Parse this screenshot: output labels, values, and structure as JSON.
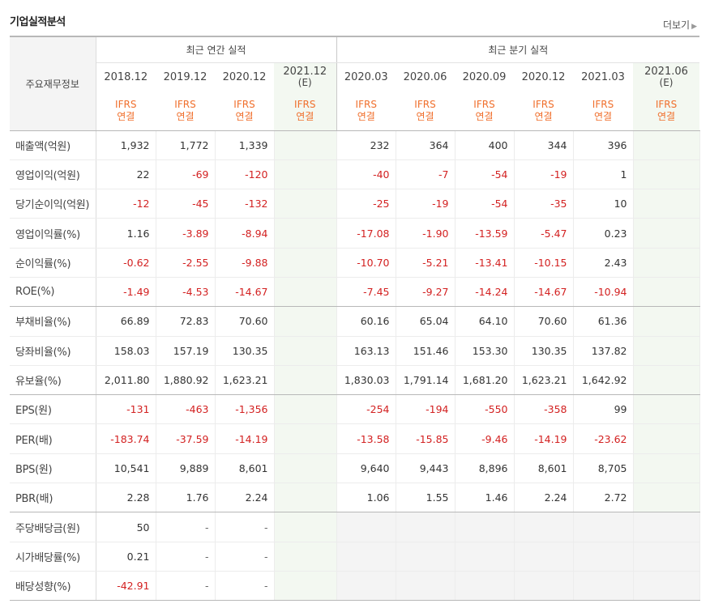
{
  "title": "기업실적분석",
  "more_label": "더보기",
  "header": {
    "row_label": "주요재무정보",
    "annual_group": "최근 연간 실적",
    "quarter_group": "최근 분기 실적"
  },
  "annual_periods": [
    {
      "year": "2018.12",
      "sub": "",
      "ifrs1": "IFRS",
      "ifrs2": "연결",
      "estimate": false
    },
    {
      "year": "2019.12",
      "sub": "",
      "ifrs1": "IFRS",
      "ifrs2": "연결",
      "estimate": false
    },
    {
      "year": "2020.12",
      "sub": "",
      "ifrs1": "IFRS",
      "ifrs2": "연결",
      "estimate": false
    },
    {
      "year": "2021.12",
      "sub": "(E)",
      "ifrs1": "IFRS",
      "ifrs2": "연결",
      "estimate": true
    }
  ],
  "quarter_periods": [
    {
      "year": "2020.03",
      "sub": "",
      "ifrs1": "IFRS",
      "ifrs2": "연결",
      "estimate": false
    },
    {
      "year": "2020.06",
      "sub": "",
      "ifrs1": "IFRS",
      "ifrs2": "연결",
      "estimate": false
    },
    {
      "year": "2020.09",
      "sub": "",
      "ifrs1": "IFRS",
      "ifrs2": "연결",
      "estimate": false
    },
    {
      "year": "2020.12",
      "sub": "",
      "ifrs1": "IFRS",
      "ifrs2": "연결",
      "estimate": false
    },
    {
      "year": "2021.03",
      "sub": "",
      "ifrs1": "IFRS",
      "ifrs2": "연결",
      "estimate": false
    },
    {
      "year": "2021.06",
      "sub": "(E)",
      "ifrs1": "IFRS",
      "ifrs2": "연결",
      "estimate": true
    }
  ],
  "rows": [
    {
      "label": "매출액(억원)",
      "annual": [
        "1,932",
        "1,772",
        "1,339",
        ""
      ],
      "quarter": [
        "232",
        "364",
        "400",
        "344",
        "396",
        ""
      ]
    },
    {
      "label": "영업이익(억원)",
      "annual": [
        "22",
        "-69",
        "-120",
        ""
      ],
      "quarter": [
        "-40",
        "-7",
        "-54",
        "-19",
        "1",
        ""
      ]
    },
    {
      "label": "당기순이익(억원)",
      "annual": [
        "-12",
        "-45",
        "-132",
        ""
      ],
      "quarter": [
        "-25",
        "-19",
        "-54",
        "-35",
        "10",
        ""
      ]
    },
    {
      "label": "영업이익률(%)",
      "annual": [
        "1.16",
        "-3.89",
        "-8.94",
        ""
      ],
      "quarter": [
        "-17.08",
        "-1.90",
        "-13.59",
        "-5.47",
        "0.23",
        ""
      ]
    },
    {
      "label": "순이익률(%)",
      "annual": [
        "-0.62",
        "-2.55",
        "-9.88",
        ""
      ],
      "quarter": [
        "-10.70",
        "-5.21",
        "-13.41",
        "-10.15",
        "2.43",
        ""
      ]
    },
    {
      "label": "ROE(%)",
      "annual": [
        "-1.49",
        "-4.53",
        "-14.67",
        ""
      ],
      "quarter": [
        "-7.45",
        "-9.27",
        "-14.24",
        "-14.67",
        "-10.94",
        ""
      ]
    },
    {
      "label": "부채비율(%)",
      "annual": [
        "66.89",
        "72.83",
        "70.60",
        ""
      ],
      "quarter": [
        "60.16",
        "65.04",
        "64.10",
        "70.60",
        "61.36",
        ""
      ]
    },
    {
      "label": "당좌비율(%)",
      "annual": [
        "158.03",
        "157.19",
        "130.35",
        ""
      ],
      "quarter": [
        "163.13",
        "151.46",
        "153.30",
        "130.35",
        "137.82",
        ""
      ]
    },
    {
      "label": "유보율(%)",
      "annual": [
        "2,011.80",
        "1,880.92",
        "1,623.21",
        ""
      ],
      "quarter": [
        "1,830.03",
        "1,791.14",
        "1,681.20",
        "1,623.21",
        "1,642.92",
        ""
      ]
    },
    {
      "label": "EPS(원)",
      "annual": [
        "-131",
        "-463",
        "-1,356",
        ""
      ],
      "quarter": [
        "-254",
        "-194",
        "-550",
        "-358",
        "99",
        ""
      ]
    },
    {
      "label": "PER(배)",
      "annual": [
        "-183.74",
        "-37.59",
        "-14.19",
        ""
      ],
      "quarter": [
        "-13.58",
        "-15.85",
        "-9.46",
        "-14.19",
        "-23.62",
        ""
      ]
    },
    {
      "label": "BPS(원)",
      "annual": [
        "10,541",
        "9,889",
        "8,601",
        ""
      ],
      "quarter": [
        "9,640",
        "9,443",
        "8,896",
        "8,601",
        "8,705",
        ""
      ]
    },
    {
      "label": "PBR(배)",
      "annual": [
        "2.28",
        "1.76",
        "2.24",
        ""
      ],
      "quarter": [
        "1.06",
        "1.55",
        "1.46",
        "2.24",
        "2.72",
        ""
      ]
    },
    {
      "label": "주당배당금(원)",
      "annual": [
        "50",
        "-",
        "-",
        ""
      ],
      "quarter": [
        "",
        "",
        "",
        "",
        "",
        ""
      ]
    },
    {
      "label": "시가배당률(%)",
      "annual": [
        "0.21",
        "-",
        "-",
        ""
      ],
      "quarter": [
        "",
        "",
        "",
        "",
        "",
        ""
      ]
    },
    {
      "label": "배당성향(%)",
      "annual": [
        "-42.91",
        "-",
        "-",
        ""
      ],
      "quarter": [
        "",
        "",
        "",
        "",
        "",
        ""
      ]
    }
  ],
  "colors": {
    "negative": "#d32121",
    "ifrs": "#f06f2c",
    "estimate_bg": "#f3f8f1",
    "empty_bg": "#f4f4f4"
  }
}
